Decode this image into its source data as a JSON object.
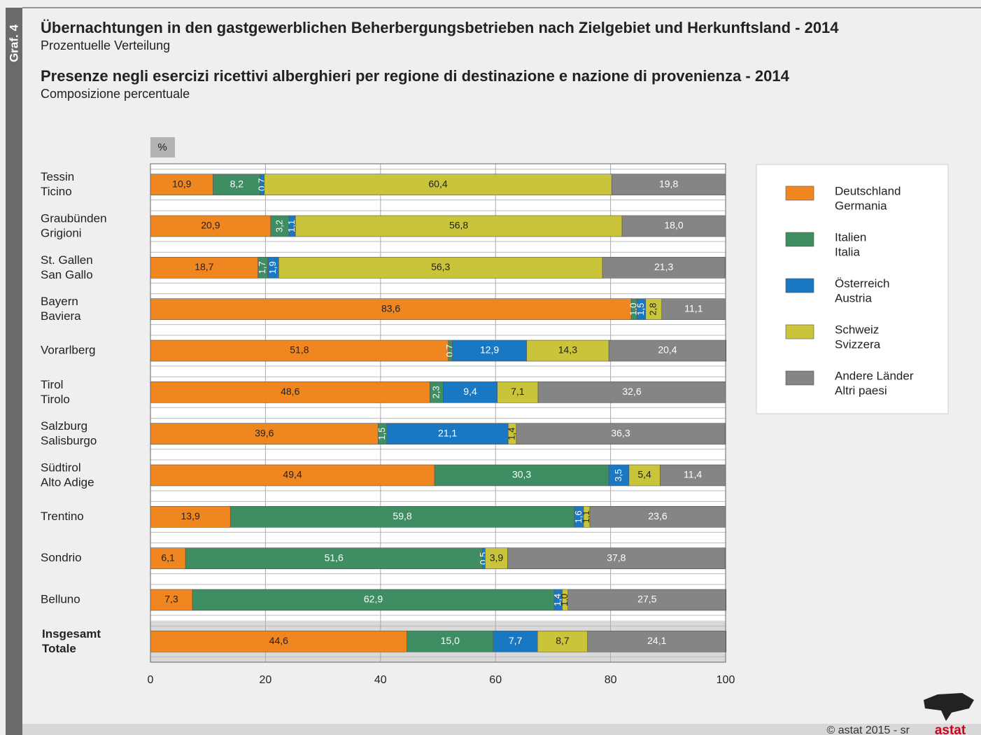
{
  "chart_data": {
    "type": "stacked-bar-horizontal",
    "graph_label": "Graf. 4",
    "title": "Übernachtungen in den gastgewerblichen Beherbergungsbetrieben nach Zielgebiet und Herkunftsland - 2014",
    "subtitle": "Prozentuelle Verteilung",
    "title_it": "Presenze negli esercizi ricettivi alberghieri per regione di destinazione e nazione di provenienza - 2014",
    "subtitle_it": "Composizione percentuale",
    "unit_label": "%",
    "categories": [
      [
        "Tessin",
        "Ticino"
      ],
      [
        "Graubünden",
        "Grigioni"
      ],
      [
        "St. Gallen",
        "San Gallo"
      ],
      [
        "Bayern",
        "Baviera"
      ],
      [
        "Vorarlberg"
      ],
      [
        "Tirol",
        "Tirolo"
      ],
      [
        "Salzburg",
        "Salisburgo"
      ],
      [
        "Südtirol",
        "Alto Adige"
      ],
      [
        "Trentino"
      ],
      [
        "Sondrio"
      ],
      [
        "Belluno"
      ],
      [
        "Insgesamt",
        "Totale"
      ]
    ],
    "series": [
      {
        "name": [
          "Deutschland",
          "Germania"
        ],
        "color": "#f0861f",
        "values": [
          10.9,
          20.9,
          18.7,
          83.6,
          51.8,
          48.6,
          39.6,
          49.4,
          13.9,
          6.1,
          7.3,
          44.6
        ],
        "value_labels": [
          "10,9",
          "20,9",
          "18,7",
          "83,6",
          "51,8",
          "48,6",
          "39,6",
          "49,4",
          "13,9",
          "6,1",
          "7,3",
          "44,6"
        ]
      },
      {
        "name": [
          "Italien",
          "Italia"
        ],
        "color": "#3f8d63",
        "values": [
          8.2,
          3.2,
          1.7,
          1.0,
          0.7,
          2.3,
          1.5,
          30.3,
          59.8,
          51.6,
          62.9,
          15.0
        ],
        "value_labels": [
          "8,2",
          "3,2",
          "1,7",
          "1,0",
          "0,7",
          "2,3",
          "1,5",
          "30,3",
          "59,8",
          "51,6",
          "62,9",
          "15,0"
        ]
      },
      {
        "name": [
          "Österreich",
          "Austria"
        ],
        "color": "#1a78c2",
        "values": [
          0.7,
          1.1,
          1.9,
          1.5,
          12.9,
          9.4,
          21.1,
          3.5,
          1.6,
          0.5,
          1.4,
          7.7
        ],
        "value_labels": [
          "0,7",
          "1,1",
          "1,9",
          "1,5",
          "12,9",
          "9,4",
          "21,1",
          "3,5",
          "1,6",
          "0,5",
          "1,4",
          "7,7"
        ]
      },
      {
        "name": [
          "Schweiz",
          "Svizzera"
        ],
        "color": "#c9c43a",
        "values": [
          60.4,
          56.8,
          56.3,
          2.8,
          14.3,
          7.1,
          1.4,
          5.4,
          1.1,
          3.9,
          1.0,
          8.7
        ],
        "value_labels": [
          "60,4",
          "56,8",
          "56,3",
          "2,8",
          "14,3",
          "7,1",
          "1,4",
          "5,4",
          "1,1",
          "3,9",
          "1,0",
          "8,7"
        ]
      },
      {
        "name": [
          "Andere Länder",
          "Altri paesi"
        ],
        "color": "#858585",
        "values": [
          19.8,
          18.0,
          21.3,
          11.1,
          20.4,
          32.6,
          36.3,
          11.4,
          23.6,
          37.8,
          27.5,
          24.1
        ],
        "value_labels": [
          "19,8",
          "18,0",
          "21,3",
          "11,1",
          "20,4",
          "32,6",
          "36,3",
          "11,4",
          "23,6",
          "37,8",
          "27,5",
          "24,1"
        ]
      }
    ],
    "xlim": [
      0,
      100
    ],
    "xticks": [
      0,
      20,
      40,
      60,
      80,
      100
    ],
    "grid": true,
    "legend": "right",
    "source": "© astat 2015 - sr",
    "logo": "astat"
  }
}
